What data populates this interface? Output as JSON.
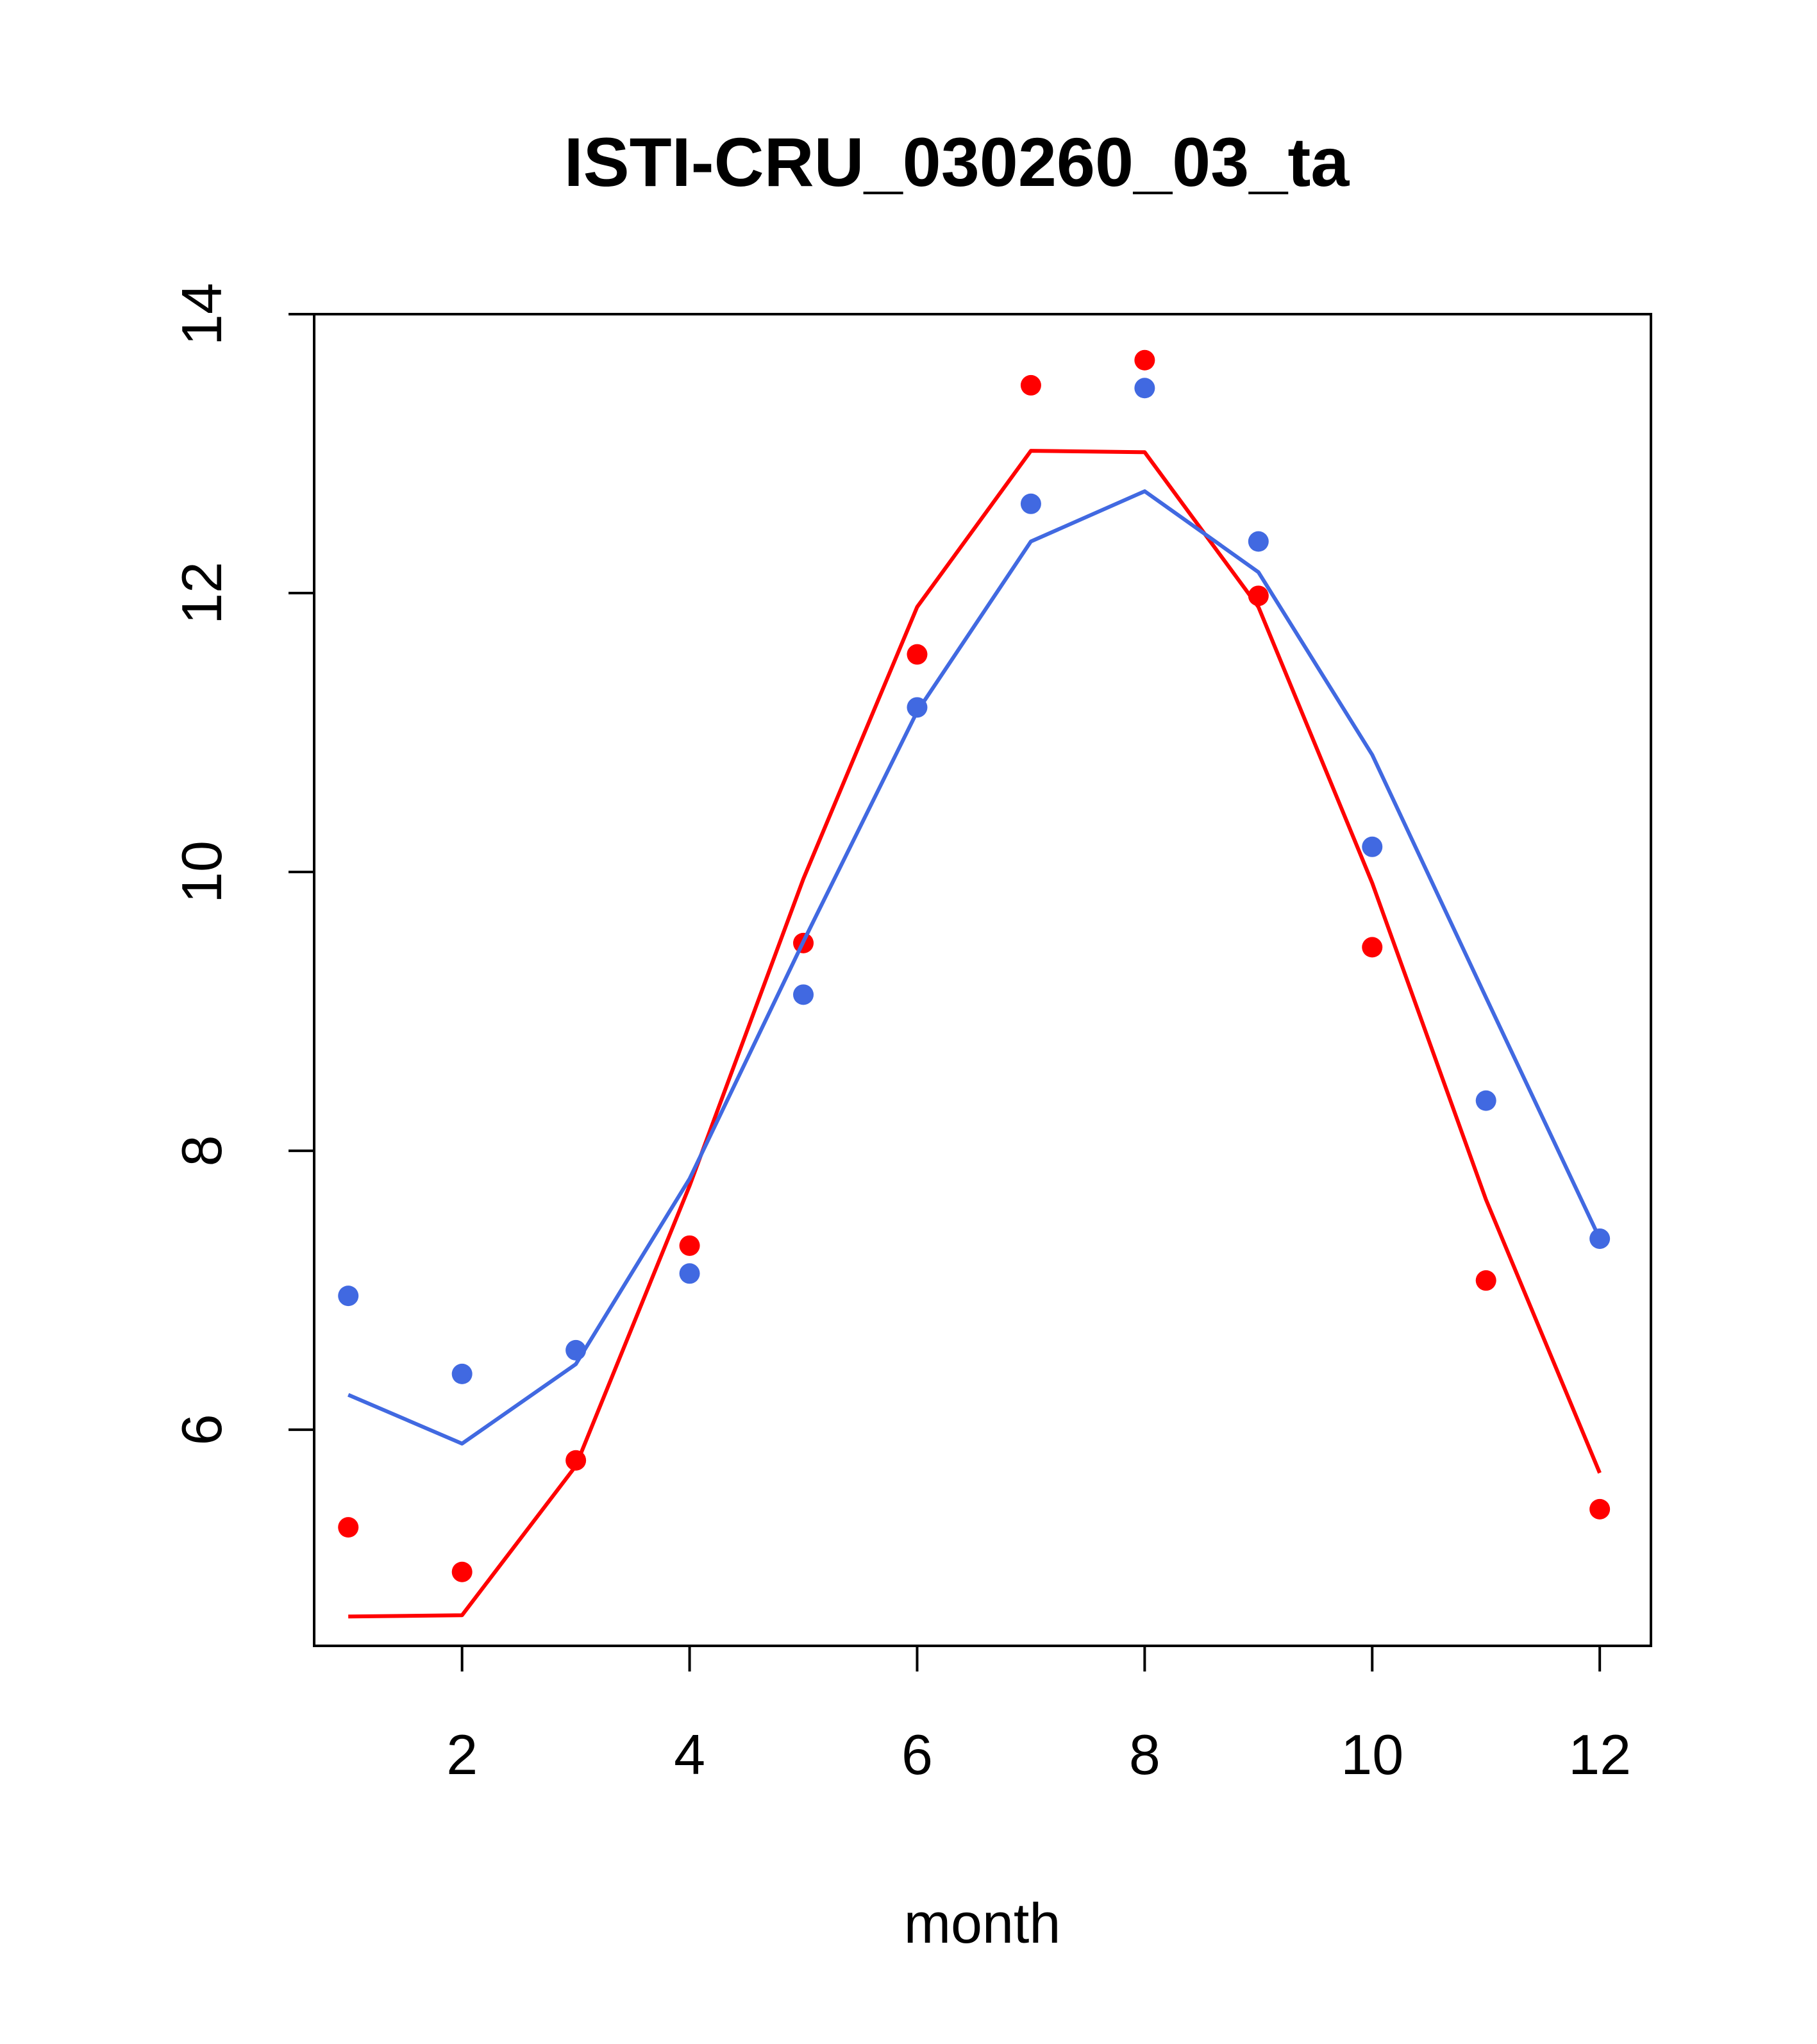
{
  "chart_data": {
    "type": "line",
    "title": "ISTI-CRU_030260_03_ta",
    "xlabel": "month",
    "ylabel": "",
    "xlim": [
      0.7,
      12.45
    ],
    "ylim": [
      4.45,
      14.0
    ],
    "x_ticks": [
      2,
      4,
      6,
      8,
      10,
      12
    ],
    "y_ticks": [
      6,
      8,
      10,
      12,
      14
    ],
    "grid": false,
    "series": [
      {
        "color": "#ff0000",
        "x": [
          1,
          2,
          3,
          4,
          5,
          6,
          7,
          8,
          9,
          10,
          11,
          12
        ],
        "points": [
          5.3,
          4.98,
          5.78,
          7.32,
          9.49,
          11.56,
          13.49,
          13.67,
          11.98,
          9.46,
          7.07,
          5.43
        ],
        "line": [
          4.66,
          4.67,
          5.74,
          7.75,
          9.95,
          11.9,
          13.02,
          13.01,
          11.9,
          9.92,
          7.65,
          5.69
        ]
      },
      {
        "color": "#4169e1",
        "x": [
          1,
          2,
          3,
          4,
          5,
          6,
          7,
          8,
          9,
          10,
          11,
          12
        ],
        "points": [
          6.96,
          6.4,
          6.57,
          7.12,
          9.12,
          11.18,
          12.64,
          13.47,
          12.37,
          10.18,
          8.36,
          7.37
        ],
        "line": [
          6.25,
          5.9,
          6.47,
          7.8,
          9.5,
          11.15,
          12.37,
          12.73,
          12.15,
          10.84,
          9.1,
          7.37
        ]
      }
    ]
  }
}
